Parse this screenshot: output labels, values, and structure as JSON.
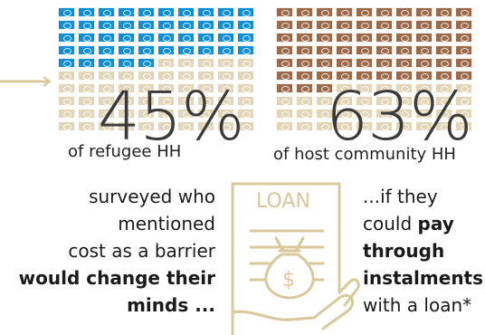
{
  "colors": {
    "refugee_filled": "#0a8fd8",
    "host_filled": "#9a6a4b",
    "unfilled": "#e3d6b8",
    "accent": "#d8c89a"
  },
  "refugee": {
    "percent_label": "45%",
    "subtitle": "of refugee HH",
    "filled_fraction": 0.45,
    "grid_rows": 10,
    "grid_cols": 10
  },
  "host": {
    "percent_label": "63%",
    "subtitle": "of host community HH",
    "filled_fraction": 0.63,
    "grid_rows": 10,
    "grid_cols": 10
  },
  "left_text": {
    "line1": "surveyed who",
    "line2": "mentioned",
    "line3": "cost as a barrier",
    "line4": "would change their",
    "line5": "minds ..."
  },
  "right_text": {
    "line1": "...if they",
    "line2_prefix": "could ",
    "line2_bold": "pay",
    "line3": "through",
    "line4": "instalments",
    "line5_prefix": "with a loan*"
  },
  "illustration": {
    "label": "LOAN",
    "icon": "loan-document-money-bag-hand-icon",
    "currency_symbol": "$"
  }
}
